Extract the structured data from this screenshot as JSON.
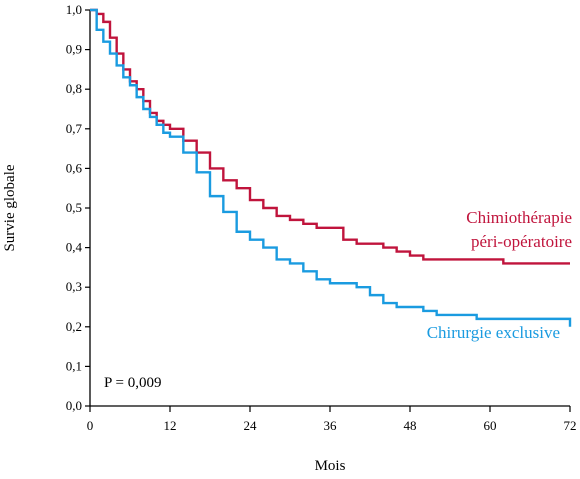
{
  "chart_data": {
    "type": "line",
    "xlabel": "Mois",
    "ylabel": "Survie globale",
    "xlim": [
      0,
      72
    ],
    "ylim": [
      0,
      1
    ],
    "x_ticks": [
      0,
      12,
      24,
      36,
      48,
      60,
      72
    ],
    "x_tick_labels": [
      "0",
      "12",
      "24",
      "36",
      "48",
      "60",
      "72"
    ],
    "y_ticks": [
      0,
      0.1,
      0.2,
      0.3,
      0.4,
      0.5,
      0.6,
      0.7,
      0.8,
      0.9,
      1.0
    ],
    "y_tick_labels": [
      "0,0",
      "0,1",
      "0,2",
      "0,3",
      "0,4",
      "0,5",
      "0,6",
      "0,7",
      "0,8",
      "0,9",
      "1,0"
    ],
    "grid": false,
    "annotation": "P = 0,009",
    "series": [
      {
        "name": "Chimiothérapie péri-opératoire",
        "label_lines": [
          "Chimiothérapie",
          "péri-opératoire"
        ],
        "color": "#c0143c",
        "x": [
          0,
          1,
          2,
          3,
          4,
          5,
          6,
          7,
          8,
          9,
          10,
          11,
          12,
          14,
          16,
          18,
          20,
          22,
          24,
          26,
          28,
          30,
          32,
          34,
          36,
          38,
          40,
          42,
          44,
          46,
          48,
          50,
          52,
          54,
          56,
          58,
          60,
          62,
          64,
          66,
          68,
          70,
          72
        ],
        "y": [
          1.0,
          0.99,
          0.97,
          0.93,
          0.89,
          0.85,
          0.82,
          0.8,
          0.77,
          0.74,
          0.72,
          0.71,
          0.7,
          0.67,
          0.64,
          0.6,
          0.57,
          0.55,
          0.52,
          0.5,
          0.48,
          0.47,
          0.46,
          0.45,
          0.45,
          0.42,
          0.41,
          0.41,
          0.4,
          0.39,
          0.38,
          0.37,
          0.37,
          0.37,
          0.37,
          0.37,
          0.37,
          0.36,
          0.36,
          0.36,
          0.36,
          0.36,
          0.36
        ]
      },
      {
        "name": "Chirurgie exclusive",
        "label_lines": [
          "Chirurgie exclusive"
        ],
        "color": "#1a9be0",
        "x": [
          0,
          1,
          2,
          3,
          4,
          5,
          6,
          7,
          8,
          9,
          10,
          11,
          12,
          14,
          16,
          18,
          20,
          22,
          24,
          26,
          28,
          30,
          32,
          34,
          36,
          38,
          40,
          42,
          44,
          46,
          48,
          50,
          52,
          54,
          56,
          58,
          60,
          62,
          64,
          66,
          68,
          70,
          71,
          72
        ],
        "y": [
          1.0,
          0.95,
          0.92,
          0.89,
          0.86,
          0.83,
          0.81,
          0.78,
          0.75,
          0.73,
          0.71,
          0.69,
          0.68,
          0.64,
          0.59,
          0.53,
          0.49,
          0.44,
          0.42,
          0.4,
          0.37,
          0.36,
          0.34,
          0.32,
          0.31,
          0.31,
          0.3,
          0.28,
          0.26,
          0.25,
          0.25,
          0.24,
          0.23,
          0.23,
          0.23,
          0.22,
          0.22,
          0.22,
          0.22,
          0.22,
          0.22,
          0.22,
          0.22,
          0.2
        ]
      }
    ]
  }
}
